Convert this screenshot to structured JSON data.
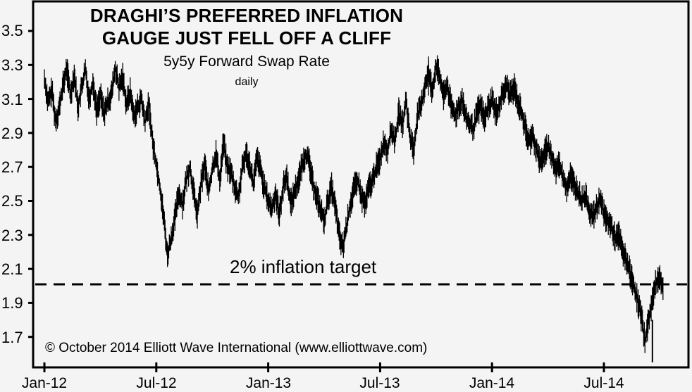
{
  "chart_data": {
    "type": "line",
    "title": "DRAGHI'S PREFERRED INFLATION GAUGE JUST FELL OFF A CLIFF",
    "title_lines": [
      "DRAGHI’S PREFERRED INFLATION",
      "GAUGE JUST FELL OFF A CLIFF"
    ],
    "subtitle": "5y5y Forward Swap Rate",
    "frequency": "daily",
    "xlabel": "",
    "ylabel": "",
    "ylim": [
      1.5,
      3.55
    ],
    "yticks": [
      3.5,
      3.3,
      3.1,
      2.9,
      2.7,
      2.5,
      2.3,
      2.1,
      1.9,
      1.7
    ],
    "ytick_labels": [
      "3.5",
      "3.3",
      "3.1",
      "2.9",
      "2.7",
      "2.5",
      "2.3",
      "2.1",
      "1.9",
      "1.7"
    ],
    "xtick_labels": [
      "Jan-12",
      "Jul-12",
      "Jan-13",
      "Jul-13",
      "Jan-14",
      "Jul-14"
    ],
    "grid": false,
    "legend": null,
    "annotations": [
      {
        "text": "2% inflation target",
        "type": "hline",
        "y": 2.0,
        "style": "dashed"
      },
      {
        "text": "© October 2014 Elliott Wave International (www.elliottwave.com)",
        "type": "footer"
      }
    ],
    "series": [
      {
        "name": "5y5y Forward Swap Rate",
        "x_months_from_jan12": [
          0.0,
          0.2,
          0.4,
          0.6,
          0.8,
          1.0,
          1.2,
          1.4,
          1.6,
          1.8,
          2.0,
          2.2,
          2.4,
          2.6,
          2.8,
          3.0,
          3.2,
          3.4,
          3.6,
          3.8,
          4.0,
          4.2,
          4.4,
          4.6,
          4.8,
          5.0,
          5.2,
          5.4,
          5.6,
          5.8,
          6.0,
          6.2,
          6.4,
          6.6,
          6.8,
          7.0,
          7.2,
          7.4,
          7.6,
          7.8,
          8.0,
          8.2,
          8.4,
          8.6,
          8.8,
          9.0,
          9.2,
          9.4,
          9.6,
          9.8,
          10.0,
          10.2,
          10.4,
          10.6,
          10.8,
          11.0,
          11.2,
          11.4,
          11.6,
          11.8,
          12.0,
          12.2,
          12.4,
          12.6,
          12.8,
          13.0,
          13.2,
          13.4,
          13.6,
          13.8,
          14.0,
          14.2,
          14.4,
          14.6,
          14.8,
          15.0,
          15.2,
          15.4,
          15.6,
          15.8,
          16.0,
          16.2,
          16.4,
          16.6,
          16.8,
          17.0,
          17.2,
          17.4,
          17.6,
          17.8,
          18.0,
          18.2,
          18.4,
          18.6,
          18.8,
          19.0,
          19.2,
          19.4,
          19.6,
          19.8,
          20.0,
          20.2,
          20.4,
          20.6,
          20.8,
          21.0,
          21.2,
          21.4,
          21.6,
          21.8,
          22.0,
          22.2,
          22.4,
          22.6,
          22.8,
          23.0,
          23.2,
          23.4,
          23.6,
          23.8,
          24.0,
          24.2,
          24.4,
          24.6,
          24.8,
          25.0,
          25.2,
          25.4,
          25.6,
          25.8,
          26.0,
          26.2,
          26.4,
          26.6,
          26.8,
          27.0,
          27.2,
          27.4,
          27.6,
          27.8,
          28.0,
          28.2,
          28.4,
          28.6,
          28.8,
          29.0,
          29.2,
          29.4,
          29.6,
          29.8,
          30.0,
          30.2,
          30.4,
          30.6,
          30.8,
          31.0,
          31.2,
          31.4,
          31.6,
          31.8,
          32.0,
          32.2,
          32.4,
          32.6,
          32.8,
          33.0,
          33.2
        ],
        "values": [
          3.22,
          3.08,
          3.15,
          2.97,
          3.05,
          3.18,
          3.28,
          3.12,
          3.25,
          3.05,
          3.17,
          3.27,
          3.1,
          3.2,
          3.03,
          3.12,
          3.02,
          3.08,
          3.13,
          3.28,
          3.16,
          3.23,
          3.07,
          3.14,
          3.0,
          3.05,
          3.1,
          2.96,
          3.07,
          2.85,
          2.72,
          2.58,
          2.4,
          2.18,
          2.28,
          2.4,
          2.55,
          2.48,
          2.62,
          2.7,
          2.55,
          2.42,
          2.6,
          2.72,
          2.55,
          2.68,
          2.78,
          2.62,
          2.85,
          2.7,
          2.67,
          2.58,
          2.52,
          2.68,
          2.78,
          2.72,
          2.6,
          2.75,
          2.68,
          2.57,
          2.5,
          2.45,
          2.55,
          2.42,
          2.58,
          2.65,
          2.48,
          2.55,
          2.62,
          2.7,
          2.78,
          2.72,
          2.6,
          2.53,
          2.45,
          2.38,
          2.5,
          2.58,
          2.46,
          2.3,
          2.22,
          2.35,
          2.48,
          2.57,
          2.62,
          2.52,
          2.48,
          2.58,
          2.62,
          2.7,
          2.75,
          2.85,
          2.8,
          2.92,
          2.85,
          3.02,
          2.95,
          3.08,
          2.88,
          2.8,
          3.0,
          3.05,
          3.18,
          3.25,
          3.15,
          3.3,
          3.22,
          3.12,
          3.18,
          3.06,
          3.0,
          3.05,
          3.1,
          2.98,
          2.95,
          2.92,
          3.02,
          3.06,
          2.98,
          3.05,
          3.1,
          3.02,
          3.06,
          3.14,
          3.17,
          3.12,
          3.17,
          3.08,
          3.02,
          2.92,
          2.85,
          2.88,
          2.8,
          2.72,
          2.78,
          2.82,
          2.76,
          2.68,
          2.72,
          2.64,
          2.58,
          2.65,
          2.6,
          2.56,
          2.5,
          2.53,
          2.46,
          2.4,
          2.45,
          2.52,
          2.42,
          2.38,
          2.35,
          2.28,
          2.3,
          2.2,
          2.15,
          2.08,
          2.0,
          1.92,
          1.82,
          1.68,
          1.8,
          1.92,
          2.02,
          2.06,
          1.98,
          1.9,
          1.86,
          1.8,
          1.78,
          1.64,
          1.78,
          1.84
        ],
        "annotated_extremes": {
          "max": 3.35,
          "max_date": "~Aug-13",
          "min": 1.55,
          "min_date": "~Oct-14"
        }
      }
    ]
  },
  "axis": {
    "y_labels": [
      "3.5",
      "3.3",
      "3.1",
      "2.9",
      "2.7",
      "2.5",
      "2.3",
      "2.1",
      "1.9",
      "1.7"
    ],
    "x_labels": [
      "Jan-12",
      "Jul-12",
      "Jan-13",
      "Jul-13",
      "Jan-14",
      "Jul-14"
    ]
  },
  "labels": {
    "title_line1": "DRAGHI’S PREFERRED INFLATION",
    "title_line2": "GAUGE JUST FELL OFF A CLIFF",
    "subtitle": "5y5y Forward Swap Rate",
    "frequency": "daily",
    "target": "2% inflation target",
    "copyright": "© October 2014 Elliott Wave International (www.elliottwave.com)"
  },
  "colors": {
    "background": "#f4f4f4",
    "line": "#000000",
    "frame": "#000000"
  }
}
